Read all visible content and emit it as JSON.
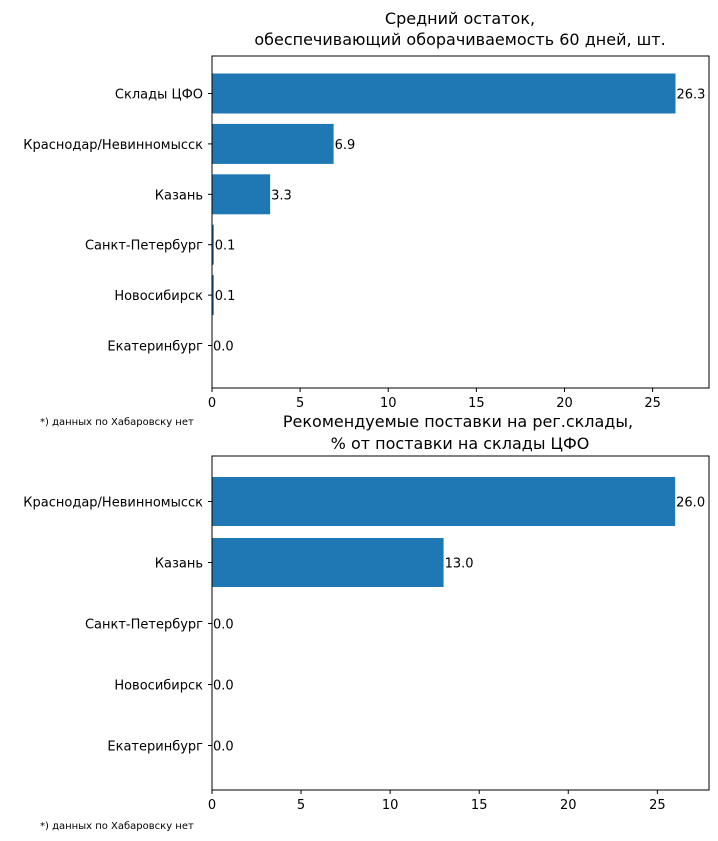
{
  "chart_data": [
    {
      "type": "bar",
      "orientation": "horizontal",
      "title_lines": [
        "Средний остаток,",
        "обеспечивающий оборачиваемость 60 дней, шт."
      ],
      "categories": [
        "Склады ЦФО",
        "Краснодар/Невинномысск",
        "Казань",
        "Санкт-Петербург",
        "Новосибирск",
        "Екатеринбург"
      ],
      "values": [
        26.3,
        6.9,
        3.3,
        0.1,
        0.1,
        0.0
      ],
      "data_labels": [
        "26.3",
        "6.9",
        "3.3",
        "0.1",
        "0.1",
        "0.0"
      ],
      "xlim": [
        0,
        28.2
      ],
      "xticks": [
        0,
        5,
        10,
        15,
        20,
        25
      ],
      "xlabel": "",
      "ylabel": "",
      "grid": false,
      "bar_color": "#1f77b4",
      "footnote": "*) данных по Хабаровску нет"
    },
    {
      "type": "bar",
      "orientation": "horizontal",
      "title_lines": [
        "Рекомендуемые поставки на рег.склады,",
        "% от поставки на склады ЦФО"
      ],
      "categories": [
        "Краснодар/Невинномысск",
        "Казань",
        "Санкт-Петербург",
        "Новосибирск",
        "Екатеринбург"
      ],
      "values": [
        26.0,
        13.0,
        0.0,
        0.0,
        0.0
      ],
      "data_labels": [
        "26.0",
        "13.0",
        "0.0",
        "0.0",
        "0.0"
      ],
      "xlim": [
        0,
        27.9
      ],
      "xticks": [
        0,
        5,
        10,
        15,
        20,
        25
      ],
      "xlabel": "",
      "ylabel": "",
      "grid": false,
      "bar_color": "#1f77b4",
      "footnote": "*) данных по Хабаровску нет"
    }
  ]
}
